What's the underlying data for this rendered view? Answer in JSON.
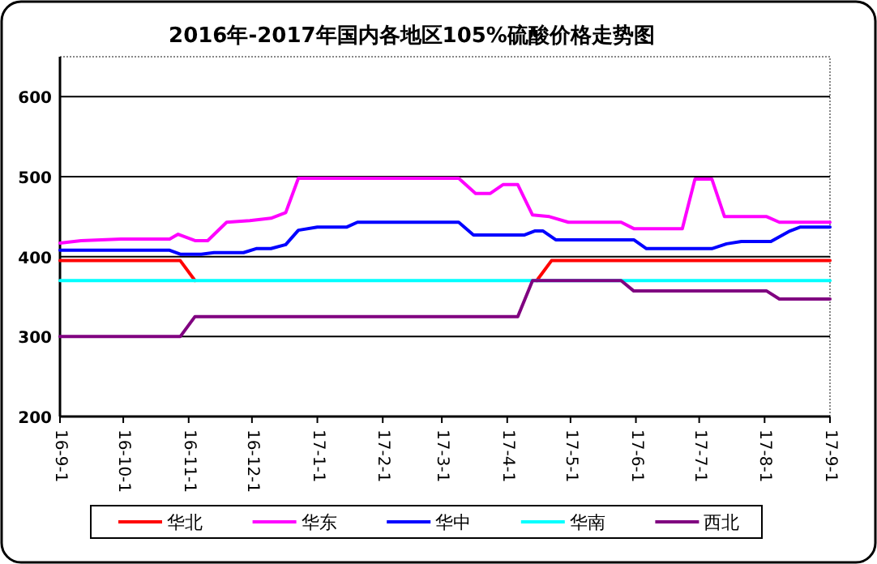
{
  "chart_data": {
    "type": "line",
    "title": "2016年-2017年国内各地区105%硫酸价格走势图",
    "xlim": [
      "2016-09-01",
      "2017-09-01"
    ],
    "xticks": [
      {
        "value": "2016-09-01",
        "label": "16-9-1"
      },
      {
        "value": "2016-10-01",
        "label": "16-10-1"
      },
      {
        "value": "2016-11-01",
        "label": "16-11-1"
      },
      {
        "value": "2016-12-01",
        "label": "16-12-1"
      },
      {
        "value": "2017-01-01",
        "label": "17-1-1"
      },
      {
        "value": "2017-02-01",
        "label": "17-2-1"
      },
      {
        "value": "2017-03-01",
        "label": "17-3-1"
      },
      {
        "value": "2017-04-01",
        "label": "17-4-1"
      },
      {
        "value": "2017-05-01",
        "label": "17-5-1"
      },
      {
        "value": "2017-06-01",
        "label": "17-6-1"
      },
      {
        "value": "2017-07-01",
        "label": "17-7-1"
      },
      {
        "value": "2017-08-01",
        "label": "17-8-1"
      },
      {
        "value": "2017-09-01",
        "label": "17-9-1"
      }
    ],
    "ylim": [
      200,
      650
    ],
    "yticks": [
      200,
      300,
      400,
      500,
      600
    ],
    "grid": "y",
    "legend": "bottom",
    "marker": "none",
    "line_style": "solid",
    "series": [
      {
        "name": "华北",
        "color": "#ff0000",
        "x": [
          "2016-09-01",
          "2016-10-28",
          "2016-11-04",
          "2016-11-05",
          "2017-04-14",
          "2017-04-15",
          "2017-04-22",
          "2017-09-01"
        ],
        "values": [
          395,
          395,
          370,
          null,
          null,
          370,
          395,
          395
        ]
      },
      {
        "name": "华东",
        "color": "#ff00ff",
        "x": [
          "2016-09-01",
          "2016-09-11",
          "2016-09-30",
          "2016-10-23",
          "2016-10-27",
          "2016-11-04",
          "2016-11-10",
          "2016-11-19",
          "2016-11-30",
          "2016-12-10",
          "2016-12-17",
          "2016-12-23",
          "2017-03-09",
          "2017-03-17",
          "2017-03-24",
          "2017-03-30",
          "2017-04-06",
          "2017-04-13",
          "2017-04-21",
          "2017-04-30",
          "2017-05-25",
          "2017-05-31",
          "2017-06-23",
          "2017-06-29",
          "2017-07-07",
          "2017-07-13",
          "2017-08-02",
          "2017-08-08",
          "2017-09-01"
        ],
        "values": [
          417,
          420,
          422,
          422,
          428,
          420,
          420,
          443,
          445,
          448,
          455,
          498,
          498,
          479,
          479,
          490,
          490,
          452,
          450,
          443,
          443,
          435,
          435,
          497,
          497,
          450,
          450,
          443,
          443
        ]
      },
      {
        "name": "华中",
        "color": "#0000ff",
        "x": [
          "2016-09-01",
          "2016-10-23",
          "2016-10-28",
          "2016-11-07",
          "2016-11-13",
          "2016-11-27",
          "2016-12-03",
          "2016-12-10",
          "2016-12-17",
          "2016-12-23",
          "2017-01-01",
          "2017-01-15",
          "2017-01-20",
          "2017-03-09",
          "2017-03-16",
          "2017-04-09",
          "2017-04-14",
          "2017-04-18",
          "2017-04-24",
          "2017-05-31",
          "2017-06-06",
          "2017-07-07",
          "2017-07-14",
          "2017-07-21",
          "2017-08-04",
          "2017-08-13",
          "2017-08-18",
          "2017-09-01"
        ],
        "values": [
          408,
          408,
          403,
          403,
          405,
          405,
          410,
          410,
          415,
          433,
          437,
          437,
          443,
          443,
          427,
          427,
          432,
          432,
          421,
          421,
          410,
          410,
          416,
          419,
          419,
          432,
          437,
          437
        ]
      },
      {
        "name": "华南",
        "color": "#00ffff",
        "x": [
          "2016-09-01",
          "2017-09-01"
        ],
        "values": [
          370,
          370
        ]
      },
      {
        "name": "西北",
        "color": "#800080",
        "x": [
          "2016-09-01",
          "2016-10-28",
          "2016-11-04",
          "2017-04-06",
          "2017-04-13",
          "2017-05-25",
          "2017-05-31",
          "2017-08-02",
          "2017-08-08",
          "2017-09-01"
        ],
        "values": [
          300,
          300,
          325,
          325,
          370,
          370,
          357,
          357,
          347,
          347
        ]
      }
    ]
  }
}
